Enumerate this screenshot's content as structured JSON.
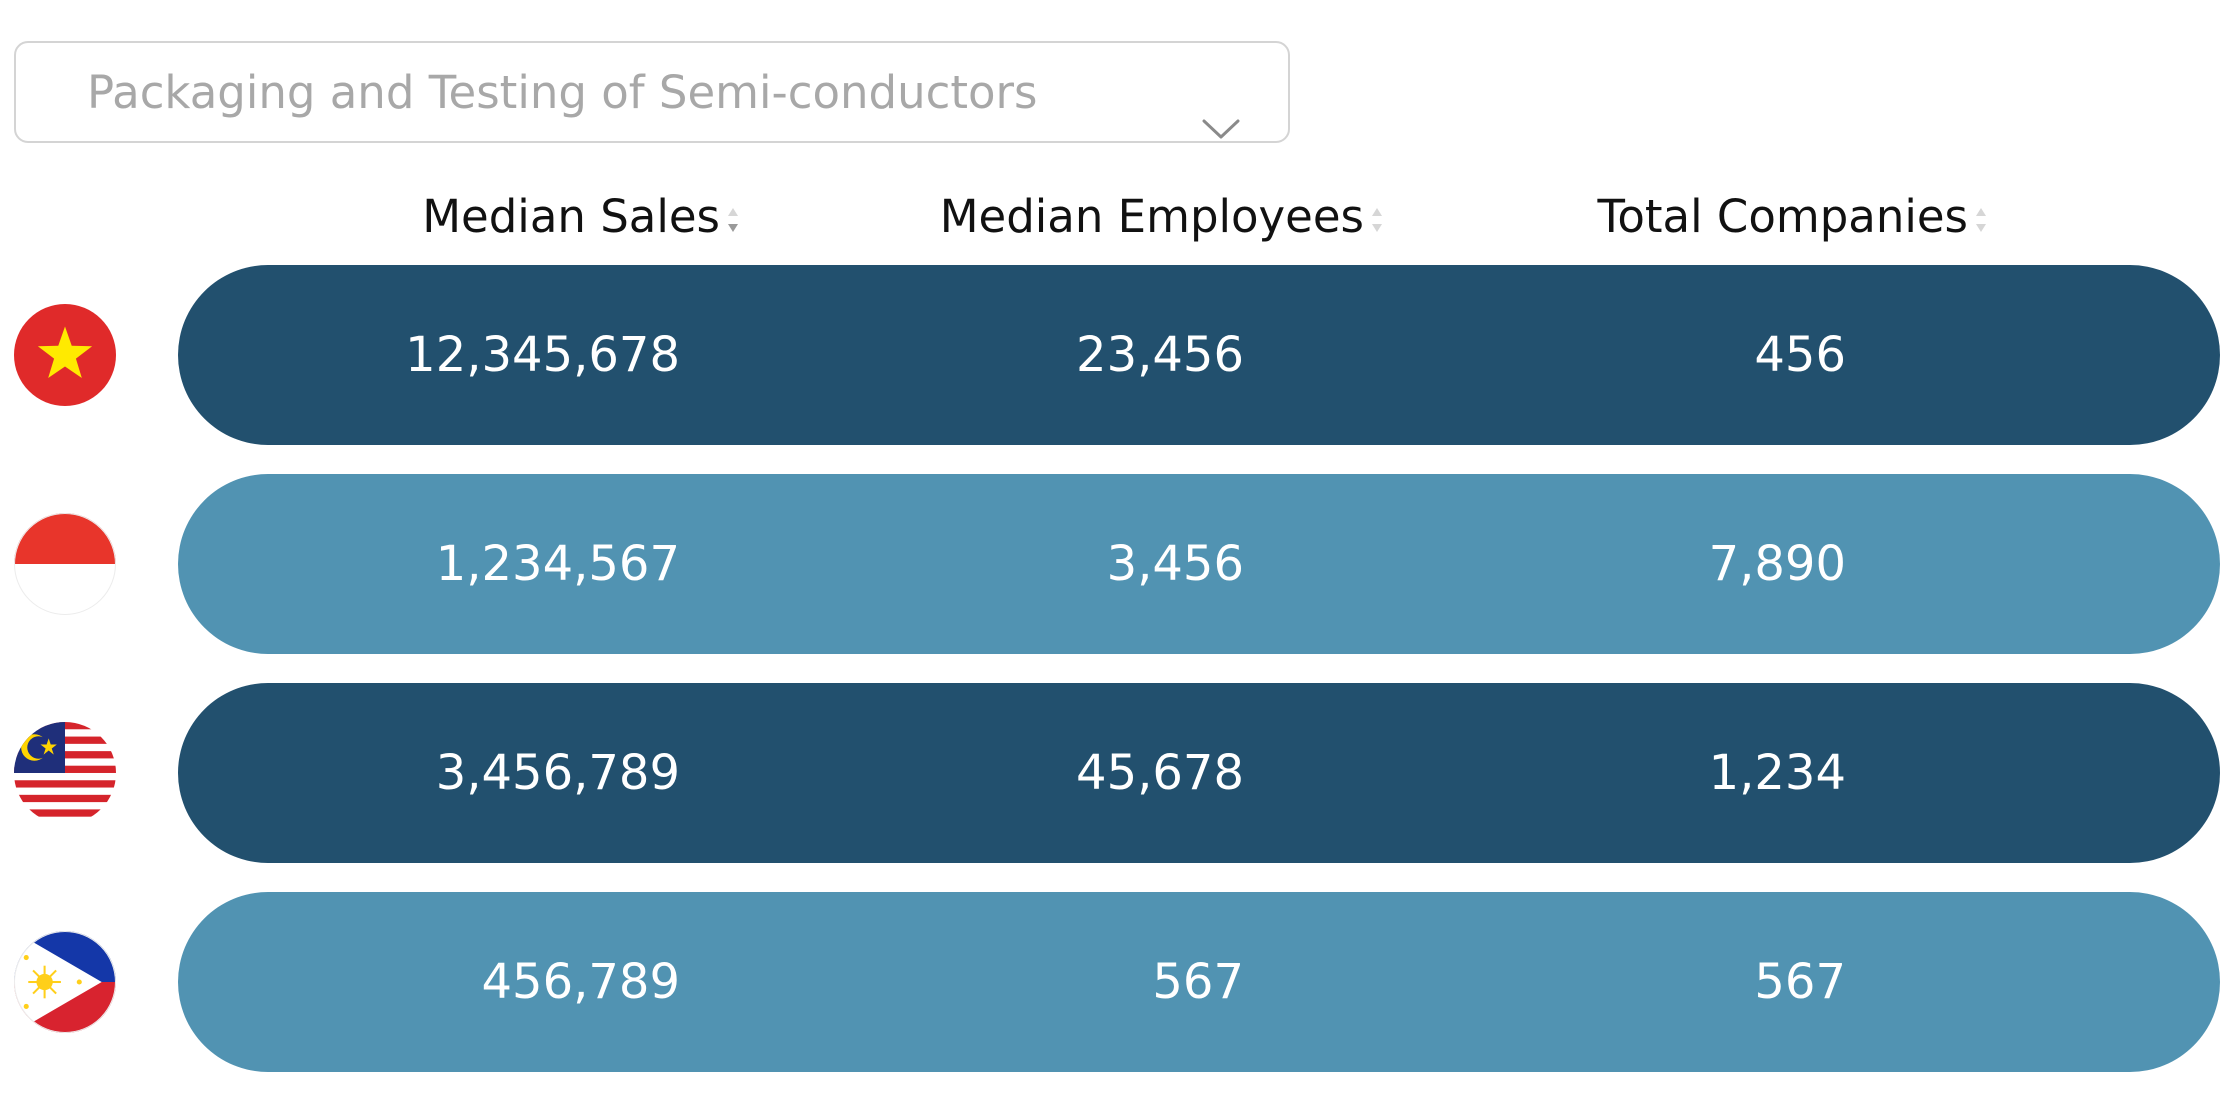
{
  "dropdown": {
    "selected": "Packaging and Testing of Semi-conductors",
    "icon": "chevron-down-icon"
  },
  "columns": [
    {
      "label": "Median Sales",
      "icon": "sort-icon"
    },
    {
      "label": "Median Employees",
      "icon": "sort-icon"
    },
    {
      "label": "Total Companies",
      "icon": "sort-icon"
    }
  ],
  "colors": {
    "row_dark": "#22506e",
    "row_light": "#5193b2",
    "text_on_row": "#ffffff"
  },
  "rows": [
    {
      "flag": "vietnam-flag-icon",
      "median_sales": "12,345,678",
      "median_employees": "23,456",
      "total_companies": "456"
    },
    {
      "flag": "indonesia-flag-icon",
      "median_sales": "1,234,567",
      "median_employees": "3,456",
      "total_companies": "7,890"
    },
    {
      "flag": "malaysia-flag-icon",
      "median_sales": "3,456,789",
      "median_employees": "45,678",
      "total_companies": "1,234"
    },
    {
      "flag": "philippines-flag-icon",
      "median_sales": "456,789",
      "median_employees": "567",
      "total_companies": "567"
    }
  ]
}
